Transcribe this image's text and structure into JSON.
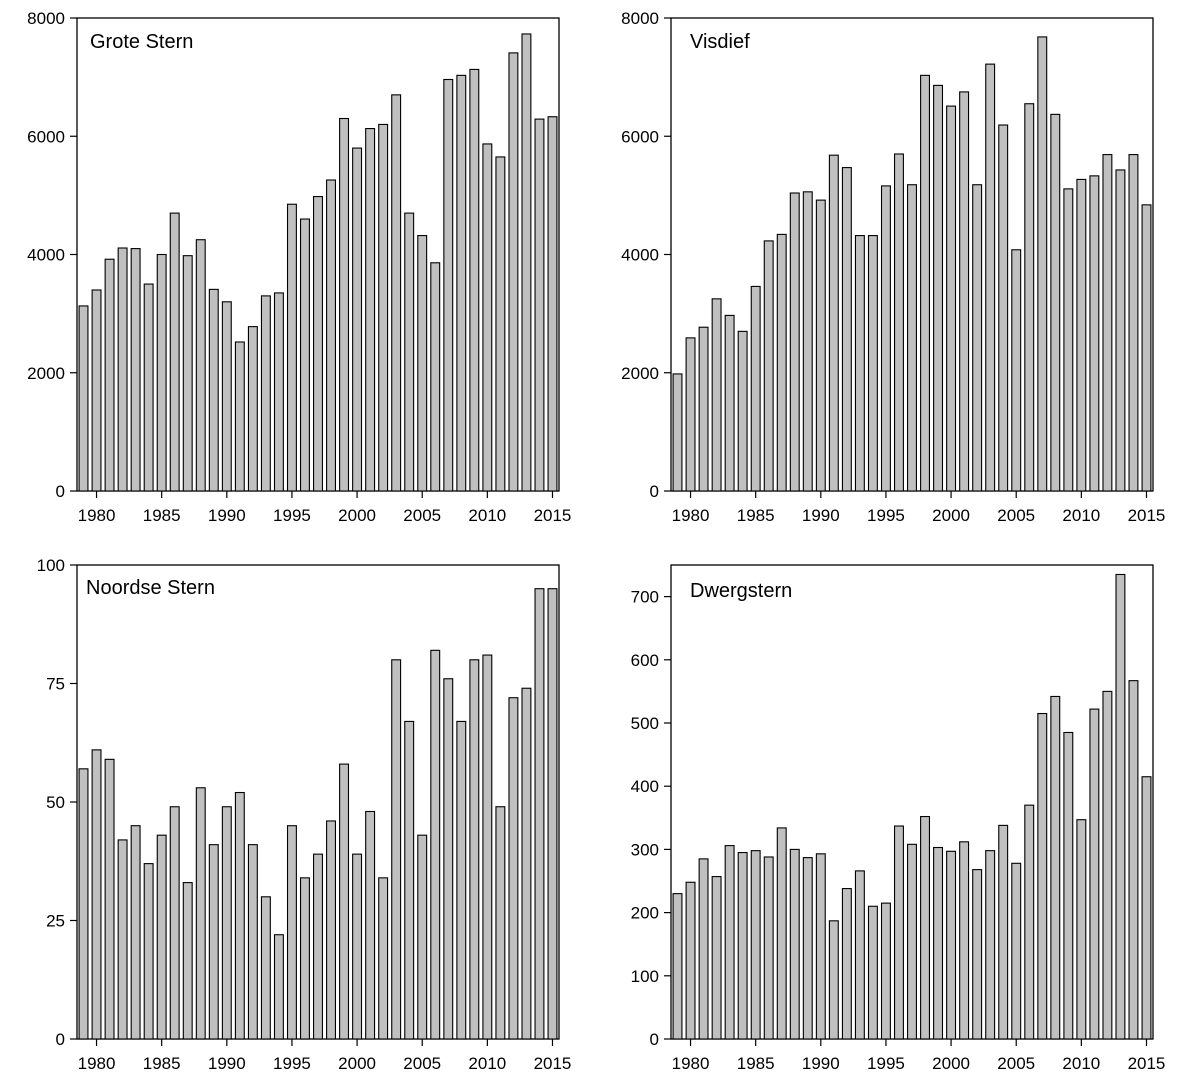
{
  "colors": {
    "bar_fill": "#c0c0c0",
    "bar_stroke": "#000000",
    "background": "#ffffff"
  },
  "chart_data": [
    {
      "type": "bar",
      "title": "Grote Stern",
      "x": [
        1979,
        1980,
        1981,
        1982,
        1983,
        1984,
        1985,
        1986,
        1987,
        1988,
        1989,
        1990,
        1991,
        1992,
        1993,
        1994,
        1995,
        1996,
        1997,
        1998,
        1999,
        2000,
        2001,
        2002,
        2003,
        2004,
        2005,
        2006,
        2007,
        2008,
        2009,
        2010,
        2011,
        2012,
        2013,
        2014,
        2015
      ],
      "values": [
        3130,
        3400,
        3920,
        4110,
        4100,
        3500,
        4000,
        4700,
        3980,
        4250,
        3410,
        3200,
        2520,
        2780,
        3300,
        3350,
        4850,
        4600,
        4980,
        5260,
        6300,
        5800,
        6130,
        6200,
        6700,
        4700,
        4320,
        3860,
        6960,
        7030,
        7130,
        5870,
        5650,
        7410,
        7730,
        6290,
        6330
      ],
      "yticks": [
        0,
        2000,
        4000,
        6000,
        8000
      ],
      "ylim": [
        0,
        8000
      ],
      "xticks": [
        1980,
        1985,
        1990,
        1995,
        2000,
        2005,
        2010,
        2015
      ],
      "xlim": [
        1978.5,
        2015.5
      ],
      "xlabel": "",
      "ylabel": "",
      "grid": false
    },
    {
      "type": "bar",
      "title": "Visdief",
      "x": [
        1979,
        1980,
        1981,
        1982,
        1983,
        1984,
        1985,
        1986,
        1987,
        1988,
        1989,
        1990,
        1991,
        1992,
        1993,
        1994,
        1995,
        1996,
        1997,
        1998,
        1999,
        2000,
        2001,
        2002,
        2003,
        2004,
        2005,
        2006,
        2007,
        2008,
        2009,
        2010,
        2011,
        2012,
        2013,
        2014,
        2015
      ],
      "values": [
        1980,
        2590,
        2770,
        3250,
        2970,
        2700,
        3460,
        4230,
        4340,
        5040,
        5060,
        4920,
        5680,
        5470,
        4320,
        4320,
        5160,
        5700,
        5180,
        7030,
        6860,
        6510,
        6750,
        5180,
        7220,
        6190,
        4080,
        6550,
        7680,
        6370,
        5110,
        5270,
        5330,
        5690,
        5430,
        5690,
        4840
      ],
      "yticks": [
        0,
        2000,
        4000,
        6000,
        8000
      ],
      "ylim": [
        0,
        8000
      ],
      "xticks": [
        1980,
        1985,
        1990,
        1995,
        2000,
        2005,
        2010,
        2015
      ],
      "xlim": [
        1978.5,
        2015.5
      ],
      "xlabel": "",
      "ylabel": "",
      "grid": false
    },
    {
      "type": "bar",
      "title": "Noordse Stern",
      "x": [
        1979,
        1980,
        1981,
        1982,
        1983,
        1984,
        1985,
        1986,
        1987,
        1988,
        1989,
        1990,
        1991,
        1992,
        1993,
        1994,
        1995,
        1996,
        1997,
        1998,
        1999,
        2000,
        2001,
        2002,
        2003,
        2004,
        2005,
        2006,
        2007,
        2008,
        2009,
        2010,
        2011,
        2012,
        2013,
        2014,
        2015
      ],
      "values": [
        57,
        61,
        59,
        42,
        45,
        37,
        43,
        49,
        33,
        53,
        41,
        49,
        52,
        41,
        30,
        22,
        45,
        34,
        39,
        46,
        58,
        39,
        48,
        34,
        80,
        67,
        43,
        82,
        76,
        67,
        80,
        81,
        49,
        72,
        74,
        95,
        95
      ],
      "yticks": [
        0,
        25,
        50,
        75,
        100
      ],
      "ylim": [
        0,
        100
      ],
      "xticks": [
        1980,
        1985,
        1990,
        1995,
        2000,
        2005,
        2010,
        2015
      ],
      "xlim": [
        1978.5,
        2015.5
      ],
      "xlabel": "",
      "ylabel": "",
      "grid": false
    },
    {
      "type": "bar",
      "title": "Dwergstern",
      "x": [
        1979,
        1980,
        1981,
        1982,
        1983,
        1984,
        1985,
        1986,
        1987,
        1988,
        1989,
        1990,
        1991,
        1992,
        1993,
        1994,
        1995,
        1996,
        1997,
        1998,
        1999,
        2000,
        2001,
        2002,
        2003,
        2004,
        2005,
        2006,
        2007,
        2008,
        2009,
        2010,
        2011,
        2012,
        2013,
        2014,
        2015
      ],
      "values": [
        230,
        248,
        285,
        257,
        306,
        295,
        298,
        288,
        334,
        300,
        287,
        293,
        187,
        238,
        266,
        210,
        215,
        337,
        308,
        352,
        303,
        297,
        312,
        268,
        298,
        338,
        278,
        370,
        515,
        542,
        485,
        347,
        522,
        550,
        735,
        567,
        415
      ],
      "yticks": [
        0,
        100,
        200,
        300,
        400,
        500,
        600,
        700
      ],
      "ylim": [
        0,
        750
      ],
      "xticks": [
        1980,
        1985,
        1990,
        1995,
        2000,
        2005,
        2010,
        2015
      ],
      "xlim": [
        1978.5,
        2015.5
      ],
      "xlabel": "",
      "ylabel": "",
      "grid": false
    }
  ]
}
